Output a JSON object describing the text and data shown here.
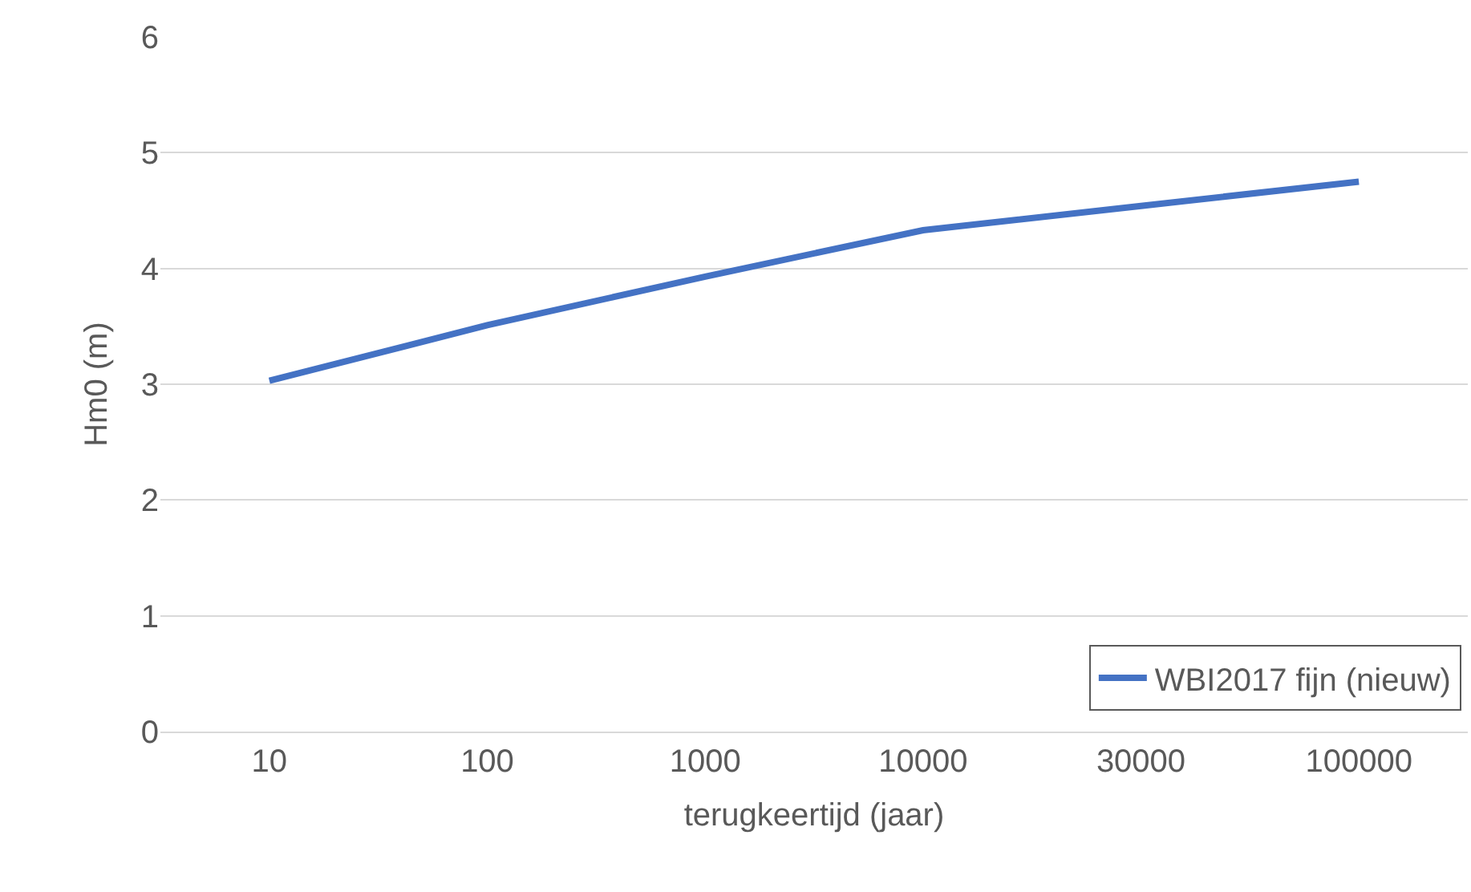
{
  "chart_data": {
    "type": "line",
    "xlabel": "terugkeertijd (jaar)",
    "ylabel": "Hm0 (m)",
    "categories": [
      "10",
      "100",
      "1000",
      "10000",
      "30000",
      "100000"
    ],
    "series": [
      {
        "name": "WBI2017 fijn (nieuw)",
        "color": "#4472c4",
        "values": [
          3.03,
          3.51,
          3.93,
          4.33,
          4.54,
          4.75
        ]
      }
    ],
    "ylim": [
      0,
      6
    ],
    "yticks": [
      0,
      1,
      2,
      3,
      4,
      5,
      6
    ],
    "grid": "y",
    "legend": "bottom right",
    "marker": "none",
    "line_style": "solid"
  }
}
